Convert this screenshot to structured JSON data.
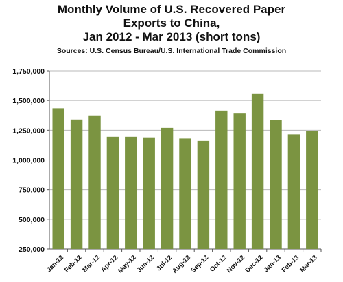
{
  "chart_data": {
    "type": "bar",
    "title": [
      "Monthly Volume of U.S. Recovered Paper",
      "Exports to China,",
      "Jan 2012 - Mar 2013 (short tons)"
    ],
    "subtitle": "Sources: U.S. Census Bureau/U.S. International Trade Commission",
    "xlabel": "",
    "ylabel": "",
    "categories": [
      "Jan-12",
      "Feb-12",
      "Mar-12",
      "Apr-12",
      "May-12",
      "Jun-12",
      "Jul-12",
      "Aug-12",
      "Sep-12",
      "Oct-12",
      "Nov-12",
      "Dec-12",
      "Jan-13",
      "Feb-13",
      "Mar-13"
    ],
    "values": [
      1435000,
      1340000,
      1375000,
      1195000,
      1195000,
      1190000,
      1270000,
      1180000,
      1160000,
      1415000,
      1390000,
      1560000,
      1335000,
      1215000,
      1245000
    ],
    "ylim": [
      250000,
      1750000
    ],
    "yticks": [
      250000,
      500000,
      750000,
      1000000,
      1250000,
      1500000,
      1750000
    ],
    "ytick_labels": [
      "250,000",
      "500,000",
      "750,000",
      "1,000,000",
      "1,250,000",
      "1,500,000",
      "1,750,000"
    ],
    "grid": true,
    "legend": "none",
    "bar_color": "#7b9441",
    "grid_color": "#b8b8b8"
  }
}
